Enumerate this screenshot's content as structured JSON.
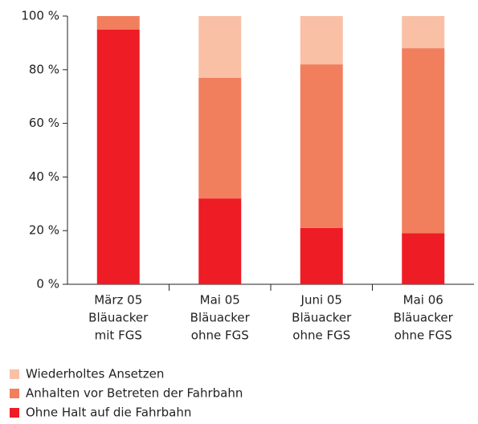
{
  "chart_data": {
    "type": "stacked-bar",
    "categories": [
      [
        "März 05",
        "Bläuacker",
        "mit FGS"
      ],
      [
        "Mai 05",
        "Bläuacker",
        "ohne FGS"
      ],
      [
        "Juni 05",
        "Bläuacker",
        "ohne FGS"
      ],
      [
        "Mai 06",
        "Bläuacker",
        "ohne FGS"
      ]
    ],
    "series": [
      {
        "name": "Ohne Halt auf die Fahrbahn",
        "color": "#ee1c25",
        "values": [
          95,
          32,
          21,
          19
        ]
      },
      {
        "name": "Anhalten vor Betreten der Fahrbahn",
        "color": "#f17f5e",
        "values": [
          5,
          45,
          61,
          69
        ]
      },
      {
        "name": "Wiederholtes Ansetzen",
        "color": "#f9c0a6",
        "values": [
          0,
          23,
          18,
          12
        ]
      }
    ],
    "ylim": [
      0,
      100
    ],
    "yticks": [
      {
        "value": 0,
        "label": "0 %"
      },
      {
        "value": 20,
        "label": "20 %"
      },
      {
        "value": 40,
        "label": "40 %"
      },
      {
        "value": 60,
        "label": "60 %"
      },
      {
        "value": 80,
        "label": "80 %"
      },
      {
        "value": 100,
        "label": "100 %"
      }
    ]
  }
}
